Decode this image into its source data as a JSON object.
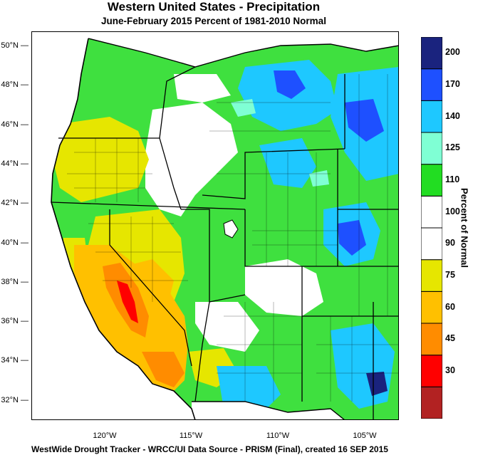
{
  "title": "Western United States - Precipitation",
  "subtitle": "June-February 2015  Percent of 1981-2010 Normal",
  "footer": "WestWide Drought Tracker - WRCC/UI  Data Source - PRISM (Final), created 16 SEP 2015",
  "latitude_labels": [
    "50°N",
    "48°N",
    "46°N",
    "44°N",
    "42°N",
    "40°N",
    "38°N",
    "36°N",
    "34°N",
    "32°N"
  ],
  "longitude_labels": [
    "120°W",
    "115°W",
    "110°W",
    "105°W"
  ],
  "legend": {
    "title": "Percent of Normal",
    "bins": [
      {
        "color": "#b22222",
        "label": ""
      },
      {
        "color": "#ff0000",
        "label": "30"
      },
      {
        "color": "#ff8c00",
        "label": "45"
      },
      {
        "color": "#ffc000",
        "label": "60"
      },
      {
        "color": "#e6e600",
        "label": "75"
      },
      {
        "color": "#ffffff",
        "label": "90"
      },
      {
        "color": "#ffffff",
        "label": "100"
      },
      {
        "color": "#22dd22",
        "label": "110"
      },
      {
        "color": "#7fffd4",
        "label": "125"
      },
      {
        "color": "#1ec8ff",
        "label": "140"
      },
      {
        "color": "#1e50ff",
        "label": "170"
      },
      {
        "color": "#1a237e",
        "label": "200"
      }
    ]
  }
}
